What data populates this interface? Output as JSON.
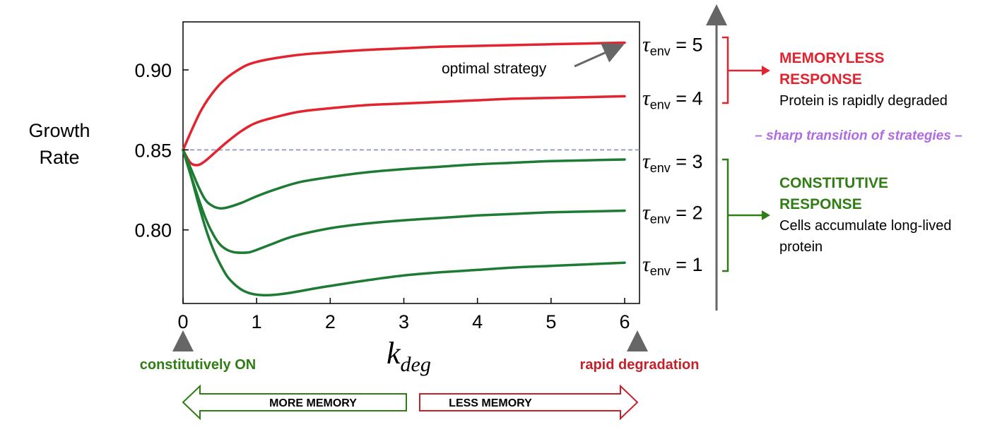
{
  "chart_data": {
    "type": "line",
    "xlabel_base": "k",
    "xlabel_sub": "deg",
    "ylabel_lines": [
      "Growth",
      "Rate"
    ],
    "xlim": [
      0,
      6
    ],
    "ylim": [
      0.754,
      0.93
    ],
    "x_ticks": [
      0,
      1,
      2,
      3,
      4,
      5,
      6
    ],
    "x_tick_labels": [
      "0",
      "1",
      "2",
      "3",
      "4",
      "5",
      "6"
    ],
    "y_ticks": [
      0.8,
      0.85,
      0.9
    ],
    "y_tick_labels": [
      "0.80",
      "0.85",
      "0.90"
    ],
    "reference_line": {
      "y": 0.85,
      "color": "#7f86bd"
    },
    "series": [
      {
        "color": "#e3232e",
        "curve_label": "5",
        "x": [
          0,
          0.25,
          0.5,
          0.75,
          1,
          1.5,
          2,
          2.5,
          3,
          3.5,
          4,
          4.5,
          5,
          5.5,
          6
        ],
        "y": [
          0.85,
          0.875,
          0.891,
          0.9,
          0.905,
          0.909,
          0.911,
          0.9125,
          0.9135,
          0.9145,
          0.915,
          0.9155,
          0.916,
          0.9165,
          0.917
        ]
      },
      {
        "color": "#e3232e",
        "curve_label": "4",
        "x": [
          0,
          0.1,
          0.2,
          0.3,
          0.45,
          0.6,
          0.8,
          1,
          1.3,
          1.6,
          2,
          2.5,
          3,
          3.5,
          4,
          4.5,
          5,
          5.5,
          6
        ],
        "y": [
          0.85,
          0.842,
          0.8405,
          0.843,
          0.849,
          0.855,
          0.862,
          0.867,
          0.871,
          0.874,
          0.876,
          0.878,
          0.879,
          0.88,
          0.881,
          0.882,
          0.8825,
          0.883,
          0.8835
        ]
      },
      {
        "color": "#1e7b34",
        "curve_label": "3",
        "x": [
          0,
          0.1,
          0.2,
          0.3,
          0.4,
          0.5,
          0.6,
          0.8,
          1,
          1.3,
          1.6,
          2,
          2.5,
          3,
          3.5,
          4,
          4.5,
          5,
          5.5,
          6
        ],
        "y": [
          0.85,
          0.839,
          0.828,
          0.819,
          0.815,
          0.8135,
          0.814,
          0.817,
          0.821,
          0.826,
          0.83,
          0.833,
          0.836,
          0.838,
          0.8395,
          0.841,
          0.842,
          0.843,
          0.8435,
          0.844
        ]
      },
      {
        "color": "#1e7b34",
        "curve_label": "2",
        "x": [
          0,
          0.1,
          0.2,
          0.3,
          0.4,
          0.5,
          0.6,
          0.7,
          0.8,
          0.9,
          1,
          1.2,
          1.5,
          2,
          2.5,
          3,
          3.5,
          4,
          4.5,
          5,
          5.5,
          6
        ],
        "y": [
          0.85,
          0.835,
          0.821,
          0.808,
          0.798,
          0.791,
          0.7875,
          0.786,
          0.7857,
          0.786,
          0.7875,
          0.791,
          0.796,
          0.801,
          0.804,
          0.806,
          0.8075,
          0.809,
          0.81,
          0.811,
          0.8115,
          0.812
        ]
      },
      {
        "color": "#1e7b34",
        "curve_label": "1",
        "x": [
          0,
          0.1,
          0.2,
          0.3,
          0.4,
          0.5,
          0.6,
          0.7,
          0.8,
          0.9,
          1,
          1.1,
          1.2,
          1.3,
          1.5,
          1.8,
          2,
          2.5,
          3,
          3.5,
          4,
          4.5,
          5,
          5.5,
          6
        ],
        "y": [
          0.85,
          0.835,
          0.818,
          0.802,
          0.789,
          0.779,
          0.771,
          0.766,
          0.7625,
          0.7605,
          0.7595,
          0.7592,
          0.7593,
          0.7597,
          0.761,
          0.7635,
          0.765,
          0.7685,
          0.7715,
          0.7735,
          0.775,
          0.7765,
          0.7775,
          0.7785,
          0.7795
        ]
      }
    ],
    "tau_label": {
      "symbol": "τ",
      "sub": "env",
      "eq": " = "
    },
    "annotations": {
      "optimal": "optimal strategy",
      "memoryless_title_1": "MEMORYLESS",
      "memoryless_title_2": "RESPONSE",
      "memoryless_desc": "Protein is rapidly degraded",
      "transition": "– sharp transition of strategies –",
      "constitutive_title_1": "CONSTITUTIVE",
      "constitutive_title_2": "RESPONSE",
      "constitutive_desc_1": "Cells accumulate long-lived",
      "constitutive_desc_2": "protein",
      "left_end": "constitutively ON",
      "right_end": "rapid degradation",
      "more_memory": "MORE MEMORY",
      "less_memory": "LESS MEMORY"
    },
    "colors": {
      "red": "#e3232e",
      "green": "#1e7b34",
      "purple": "#b06be3",
      "dark_red": "#c5212b",
      "dark_green": "#2f7d14",
      "gray_arrow": "#666666"
    }
  }
}
